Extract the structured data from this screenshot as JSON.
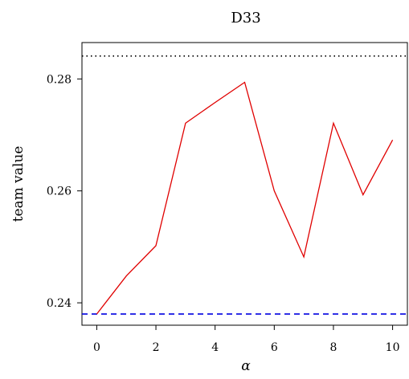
{
  "chart_data": {
    "type": "line",
    "title": "D33",
    "xlabel": "α",
    "ylabel": "team value",
    "xlim": [
      -0.5,
      10.5
    ],
    "ylim": [
      0.236,
      0.2865
    ],
    "x_ticks": [
      0,
      2,
      4,
      6,
      8,
      10
    ],
    "y_ticks": [
      0.24,
      0.26,
      0.28
    ],
    "x_tick_labels": [
      "0",
      "2",
      "4",
      "6",
      "8",
      "10"
    ],
    "y_tick_labels": [
      "0.24",
      "0.26",
      "0.28"
    ],
    "grid": false,
    "x": [
      0,
      1,
      2,
      3,
      4,
      5,
      6,
      7,
      8,
      9,
      10
    ],
    "series": [
      {
        "values": [
          0.238,
          0.2448,
          0.2502,
          0.2721,
          0.2758,
          0.2794,
          0.26,
          0.2482,
          0.2721,
          0.2593,
          0.2691
        ],
        "color": "#e00000",
        "style": "solid"
      }
    ],
    "reference_lines": [
      {
        "y": 0.2841,
        "color": "#000000",
        "style": "dotted"
      },
      {
        "y": 0.238,
        "color": "#0000e0",
        "style": "dashed"
      }
    ]
  }
}
